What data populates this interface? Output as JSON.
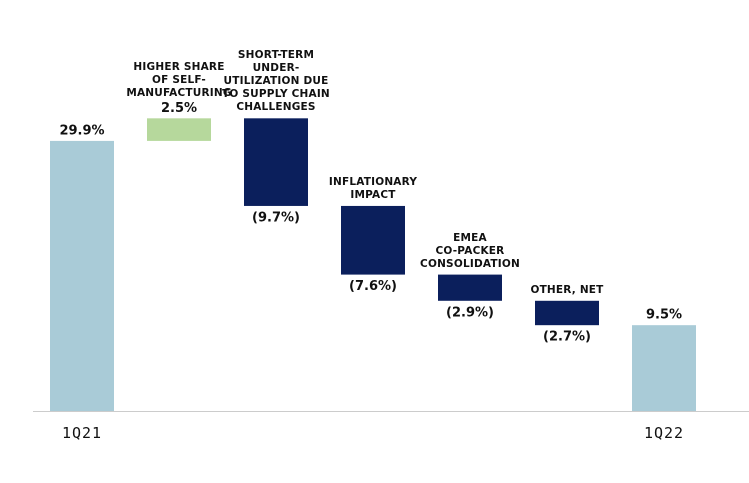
{
  "chart_data": {
    "type": "waterfall",
    "categories": [
      "1Q21",
      "HIGHER SHARE\nOF SELF-\nMANUFACTURING",
      "SHORT-TERM\nUNDER-\nUTILIZATION DUE\nTO SUPPLY CHAIN\nCHALLENGES",
      "INFLATIONARY\nIMPACT",
      "EMEA\nCO-PACKER\nCONSOLIDATION",
      "OTHER, NET",
      "1Q22"
    ],
    "measures": [
      "total",
      "relative",
      "relative",
      "relative",
      "relative",
      "relative",
      "total"
    ],
    "values": [
      29.9,
      2.5,
      -9.7,
      -7.6,
      -2.9,
      -2.7,
      9.5
    ],
    "value_labels": [
      "29.9%",
      "2.5%",
      "(9.7%)",
      "(7.6%)",
      "(2.9%)",
      "(2.7%)",
      "9.5%"
    ],
    "colors": {
      "total": "#a9cbd7",
      "increase": "#b6d89c",
      "decrease": "#0b1f5c"
    },
    "ylim": [
      0,
      30
    ]
  }
}
